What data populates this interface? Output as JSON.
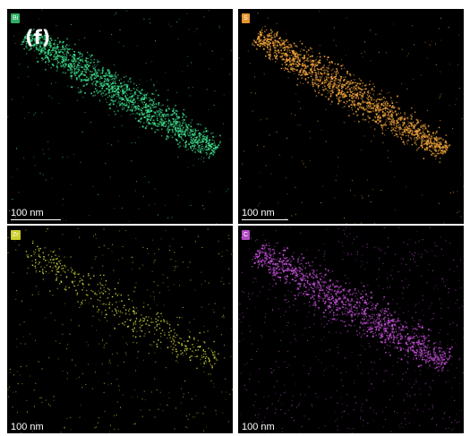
{
  "figure_label": "(f)",
  "panels": [
    {
      "id": "bi",
      "element": "Bi",
      "color": "#3ddc8a",
      "badge_color": "#2fae63",
      "scale_label": "100 nm",
      "density": "dense"
    },
    {
      "id": "s",
      "element": "S",
      "color": "#f0a23a",
      "badge_color": "#e8962c",
      "scale_label": "100 nm",
      "density": "dense"
    },
    {
      "id": "zr",
      "element": "Zr",
      "color": "#d8dc3c",
      "badge_color": "#c9cf2a",
      "scale_label": "100 nm",
      "density": "sparse"
    },
    {
      "id": "c",
      "element": "C",
      "color": "#c44fd8",
      "badge_color": "#b04ac2",
      "scale_label": "100 nm",
      "density": "medium"
    }
  ]
}
